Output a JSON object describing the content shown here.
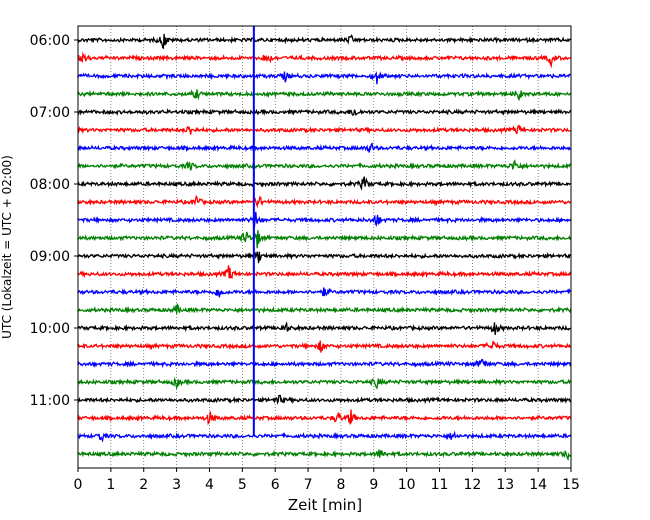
{
  "chart_data": {
    "type": "line",
    "xlabel": "Zeit  [min]",
    "ylabel": "UTC (Lokalzeit = UTC + 02:00)",
    "xlim": [
      0,
      15
    ],
    "x_ticks": [
      "0",
      "1",
      "2",
      "3",
      "4",
      "5",
      "6",
      "7",
      "8",
      "9",
      "10",
      "11",
      "12",
      "13",
      "14",
      "15"
    ],
    "y_tick_labels": [
      "06:00",
      "07:00",
      "08:00",
      "09:00",
      "10:00",
      "11:00"
    ],
    "grid_x": "dotted",
    "trace_colors": [
      "#000000",
      "#ff0000",
      "#0000ff",
      "#008000"
    ],
    "trace_count": 24,
    "marker": {
      "x_min": 5.35,
      "color": "#0000ff",
      "label": ""
    },
    "events": [
      {
        "trace": 0,
        "x": 2.6,
        "amp": 9
      },
      {
        "trace": 0,
        "x": 8.3,
        "amp": 4
      },
      {
        "trace": 1,
        "x": 0.15,
        "amp": 7
      },
      {
        "trace": 1,
        "x": 5.75,
        "amp": 8
      },
      {
        "trace": 1,
        "x": 14.4,
        "amp": 7
      },
      {
        "trace": 2,
        "x": 6.3,
        "amp": 5
      },
      {
        "trace": 2,
        "x": 9.1,
        "amp": 8
      },
      {
        "trace": 3,
        "x": 3.6,
        "amp": 5
      },
      {
        "trace": 3,
        "x": 13.4,
        "amp": 6
      },
      {
        "trace": 4,
        "x": 8.4,
        "amp": 6
      },
      {
        "trace": 5,
        "x": 3.4,
        "amp": 6
      },
      {
        "trace": 5,
        "x": 13.4,
        "amp": 6
      },
      {
        "trace": 6,
        "x": 8.9,
        "amp": 6
      },
      {
        "trace": 7,
        "x": 3.4,
        "amp": 5
      },
      {
        "trace": 7,
        "x": 13.3,
        "amp": 7
      },
      {
        "trace": 8,
        "x": 8.7,
        "amp": 8
      },
      {
        "trace": 9,
        "x": 3.6,
        "amp": 7
      },
      {
        "trace": 9,
        "x": 5.5,
        "amp": 7
      },
      {
        "trace": 10,
        "x": 5.4,
        "amp": 10
      },
      {
        "trace": 10,
        "x": 9.1,
        "amp": 7
      },
      {
        "trace": 11,
        "x": 5.1,
        "amp": 8
      },
      {
        "trace": 11,
        "x": 5.45,
        "amp": 10
      },
      {
        "trace": 12,
        "x": 5.5,
        "amp": 7
      },
      {
        "trace": 13,
        "x": 4.6,
        "amp": 9
      },
      {
        "trace": 14,
        "x": 4.3,
        "amp": 7
      },
      {
        "trace": 14,
        "x": 7.5,
        "amp": 5
      },
      {
        "trace": 15,
        "x": 3.0,
        "amp": 5
      },
      {
        "trace": 16,
        "x": 6.3,
        "amp": 6
      },
      {
        "trace": 16,
        "x": 12.7,
        "amp": 8
      },
      {
        "trace": 17,
        "x": 7.4,
        "amp": 7
      },
      {
        "trace": 17,
        "x": 12.6,
        "amp": 7
      },
      {
        "trace": 18,
        "x": 12.3,
        "amp": 7
      },
      {
        "trace": 19,
        "x": 3.0,
        "amp": 5
      },
      {
        "trace": 19,
        "x": 9.1,
        "amp": 6
      },
      {
        "trace": 20,
        "x": 6.1,
        "amp": 6
      },
      {
        "trace": 21,
        "x": 4.0,
        "amp": 7
      },
      {
        "trace": 21,
        "x": 7.9,
        "amp": 7
      },
      {
        "trace": 21,
        "x": 8.3,
        "amp": 8
      },
      {
        "trace": 22,
        "x": 0.7,
        "amp": 6
      },
      {
        "trace": 22,
        "x": 11.4,
        "amp": 5
      },
      {
        "trace": 23,
        "x": 9.2,
        "amp": 6
      },
      {
        "trace": 23,
        "x": 14.9,
        "amp": 5
      }
    ]
  }
}
